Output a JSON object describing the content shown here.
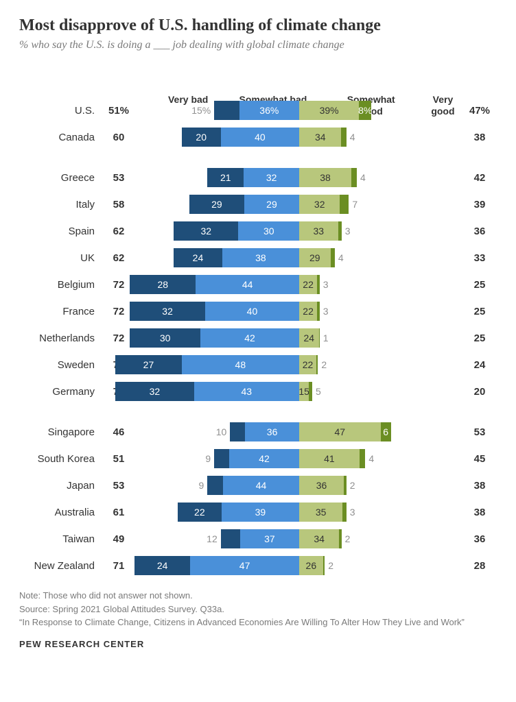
{
  "title": "Most disapprove of U.S. handling of climate change",
  "subtitle": "% who say the U.S. is doing a ___ job dealing with global climate change",
  "headers": {
    "very_bad": "Very bad",
    "somewhat_bad": "Somewhat bad",
    "somewhat_good": "Somewhat good",
    "very_good": "Very good"
  },
  "colors": {
    "very_bad": "#1f4e79",
    "somewhat_bad": "#4a90d9",
    "somewhat_good": "#b8c77c",
    "very_good": "#6b8e23",
    "text_dark": "#333333",
    "text_gray": "#909090",
    "background": "#ffffff"
  },
  "scale_pct_per_unit": 1.0,
  "groups": [
    {
      "rows": [
        {
          "label": "U.S.",
          "net_bad": "51%",
          "vb": 15,
          "sb": 36,
          "sg": 39,
          "vg": 8,
          "net_good": "47%",
          "vb_out": true,
          "vg_out": false,
          "show_pct": true
        },
        {
          "label": "Canada",
          "net_bad": "60",
          "vb": 20,
          "sb": 40,
          "sg": 34,
          "vg": 4,
          "net_good": "38",
          "vb_out": false,
          "vg_out": true
        }
      ]
    },
    {
      "rows": [
        {
          "label": "Greece",
          "net_bad": "53",
          "vb": 21,
          "sb": 32,
          "sg": 38,
          "vg": 4,
          "net_good": "42",
          "vb_out": false,
          "vg_out": true
        },
        {
          "label": "Italy",
          "net_bad": "58",
          "vb": 29,
          "sb": 29,
          "sg": 32,
          "vg": 7,
          "net_good": "39",
          "vb_out": false,
          "vg_out": true
        },
        {
          "label": "Spain",
          "net_bad": "62",
          "vb": 32,
          "sb": 30,
          "sg": 33,
          "vg": 3,
          "net_good": "36",
          "vb_out": false,
          "vg_out": true
        },
        {
          "label": "UK",
          "net_bad": "62",
          "vb": 24,
          "sb": 38,
          "sg": 29,
          "vg": 4,
          "net_good": "33",
          "vb_out": false,
          "vg_out": true
        },
        {
          "label": "Belgium",
          "net_bad": "72",
          "vb": 28,
          "sb": 44,
          "sg": 22,
          "vg": 3,
          "net_good": "25",
          "vb_out": false,
          "vg_out": true
        },
        {
          "label": "France",
          "net_bad": "72",
          "vb": 32,
          "sb": 40,
          "sg": 22,
          "vg": 3,
          "net_good": "25",
          "vb_out": false,
          "vg_out": true
        },
        {
          "label": "Netherlands",
          "net_bad": "72",
          "vb": 30,
          "sb": 42,
          "sg": 24,
          "vg": 1,
          "net_good": "25",
          "vb_out": false,
          "vg_out": true
        },
        {
          "label": "Sweden",
          "net_bad": "75",
          "vb": 27,
          "sb": 48,
          "sg": 22,
          "vg": 2,
          "net_good": "24",
          "vb_out": false,
          "vg_out": true
        },
        {
          "label": "Germany",
          "net_bad": "75",
          "vb": 32,
          "sb": 43,
          "sg": 15,
          "vg": 5,
          "net_good": "20",
          "vb_out": false,
          "vg_out": true
        }
      ]
    },
    {
      "rows": [
        {
          "label": "Singapore",
          "net_bad": "46",
          "vb": 10,
          "sb": 36,
          "sg": 47,
          "vg": 6,
          "net_good": "53",
          "vb_out": true,
          "vg_out": false
        },
        {
          "label": "South Korea",
          "net_bad": "51",
          "vb": 9,
          "sb": 42,
          "sg": 41,
          "vg": 4,
          "net_good": "45",
          "vb_out": true,
          "vg_out": true
        },
        {
          "label": "Japan",
          "net_bad": "53",
          "vb": 9,
          "sb": 44,
          "sg": 36,
          "vg": 2,
          "net_good": "38",
          "vb_out": true,
          "vg_out": true
        },
        {
          "label": "Australia",
          "net_bad": "61",
          "vb": 22,
          "sb": 39,
          "sg": 35,
          "vg": 3,
          "net_good": "38",
          "vb_out": false,
          "vg_out": true
        },
        {
          "label": "Taiwan",
          "net_bad": "49",
          "vb": 12,
          "sb": 37,
          "sg": 34,
          "vg": 2,
          "net_good": "36",
          "vb_out": true,
          "vg_out": true
        },
        {
          "label": "New Zealand",
          "net_bad": "71",
          "vb": 24,
          "sb": 47,
          "sg": 26,
          "vg": 2,
          "net_good": "28",
          "vb_out": false,
          "vg_out": true
        }
      ]
    }
  ],
  "notes": [
    "Note: Those who did not answer not shown.",
    "Source: Spring 2021 Global Attitudes Survey. Q33a.",
    "“In Response to Climate Change, Citizens in Advanced Economies Are Willing To Alter How They Live and Work”"
  ],
  "brand": "PEW RESEARCH CENTER"
}
